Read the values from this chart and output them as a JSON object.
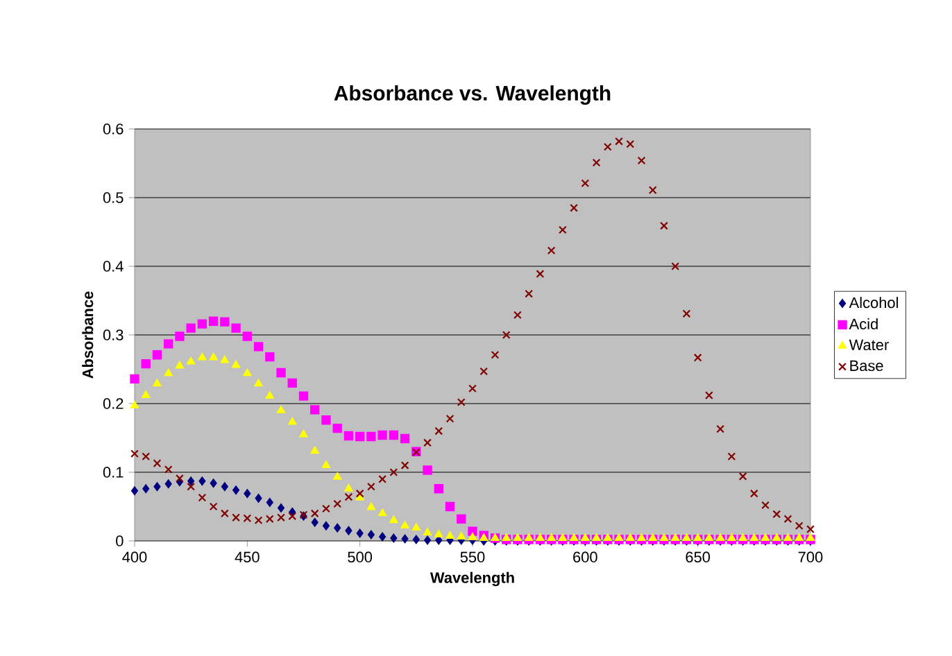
{
  "chart_data": {
    "type": "scatter",
    "title": "Absorbance vs. Wavelength",
    "xlabel": "Wavelength",
    "ylabel": "Absorbance",
    "x": [
      400,
      405,
      410,
      415,
      420,
      425,
      430,
      435,
      440,
      445,
      450,
      455,
      460,
      465,
      470,
      475,
      480,
      485,
      490,
      495,
      500,
      505,
      510,
      515,
      520,
      525,
      530,
      535,
      540,
      545,
      550,
      555,
      560,
      565,
      570,
      575,
      580,
      585,
      590,
      595,
      600,
      605,
      610,
      615,
      620,
      625,
      630,
      635,
      640,
      645,
      650,
      655,
      660,
      665,
      670,
      675,
      680,
      685,
      690,
      695,
      700
    ],
    "series": [
      {
        "name": "Alcohol",
        "color": "#000080",
        "marker": "diamond",
        "values": [
          0.073,
          0.076,
          0.079,
          0.083,
          0.086,
          0.087,
          0.087,
          0.084,
          0.079,
          0.074,
          0.069,
          0.062,
          0.056,
          0.048,
          0.042,
          0.036,
          0.027,
          0.022,
          0.019,
          0.015,
          0.011,
          0.009,
          0.006,
          0.004,
          0.003,
          0.002,
          0.001,
          0.001,
          0.001,
          0.001,
          0.001,
          0,
          0,
          0,
          0,
          0,
          0,
          0,
          0,
          0,
          0,
          0,
          0,
          0,
          0,
          0,
          0,
          0,
          0,
          0,
          0,
          0,
          0,
          0,
          0,
          0,
          0,
          0,
          0,
          0,
          0
        ]
      },
      {
        "name": "Acid",
        "color": "#ff00ff",
        "marker": "square",
        "values": [
          0.236,
          0.258,
          0.271,
          0.287,
          0.298,
          0.31,
          0.316,
          0.32,
          0.319,
          0.31,
          0.298,
          0.283,
          0.268,
          0.245,
          0.23,
          0.211,
          0.191,
          0.176,
          0.164,
          0.153,
          0.152,
          0.152,
          0.154,
          0.154,
          0.149,
          0.13,
          0.103,
          0.076,
          0.05,
          0.032,
          0.014,
          0.008,
          0.004,
          0.002,
          0.002,
          0.002,
          0.002,
          0.002,
          0.002,
          0.002,
          0.002,
          0.002,
          0.002,
          0.002,
          0.002,
          0.002,
          0.002,
          0.002,
          0.002,
          0.002,
          0.002,
          0.002,
          0.002,
          0.002,
          0.002,
          0.002,
          0.002,
          0.002,
          0.002,
          0.002,
          0.002
        ]
      },
      {
        "name": "Water",
        "color": "#ffff00",
        "marker": "triangle",
        "values": [
          0.197,
          0.212,
          0.229,
          0.244,
          0.255,
          0.261,
          0.267,
          0.267,
          0.263,
          0.256,
          0.244,
          0.229,
          0.211,
          0.19,
          0.173,
          0.155,
          0.131,
          0.11,
          0.093,
          0.076,
          0.063,
          0.049,
          0.04,
          0.03,
          0.022,
          0.019,
          0.012,
          0.009,
          0.007,
          0.006,
          0.005,
          0.004,
          0.004,
          0.004,
          0.004,
          0.004,
          0.004,
          0.004,
          0.004,
          0.004,
          0.004,
          0.004,
          0.004,
          0.004,
          0.004,
          0.004,
          0.004,
          0.004,
          0.004,
          0.004,
          0.004,
          0.004,
          0.004,
          0.004,
          0.004,
          0.004,
          0.004,
          0.004,
          0.004,
          0.004,
          0.004
        ]
      },
      {
        "name": "Base",
        "color": "#800000",
        "marker": "cross",
        "values": [
          0.127,
          0.123,
          0.113,
          0.104,
          0.091,
          0.079,
          0.063,
          0.05,
          0.04,
          0.034,
          0.033,
          0.03,
          0.032,
          0.034,
          0.036,
          0.038,
          0.04,
          0.047,
          0.054,
          0.064,
          0.069,
          0.079,
          0.09,
          0.1,
          0.11,
          0.129,
          0.143,
          0.16,
          0.178,
          0.202,
          0.222,
          0.247,
          0.271,
          0.3,
          0.329,
          0.36,
          0.389,
          0.423,
          0.453,
          0.485,
          0.521,
          0.551,
          0.574,
          0.582,
          0.578,
          0.554,
          0.511,
          0.459,
          0.4,
          0.331,
          0.267,
          0.212,
          0.163,
          0.123,
          0.094,
          0.069,
          0.052,
          0.039,
          0.032,
          0.022,
          0.017
        ]
      }
    ],
    "xlim": [
      400,
      700
    ],
    "xticks": [
      400,
      450,
      500,
      550,
      600,
      650,
      700
    ],
    "ylim": [
      0,
      0.6
    ],
    "yticks": [
      0,
      0.1,
      0.2,
      0.3,
      0.4,
      0.5,
      0.6
    ],
    "grid": "y",
    "legend": "right"
  }
}
